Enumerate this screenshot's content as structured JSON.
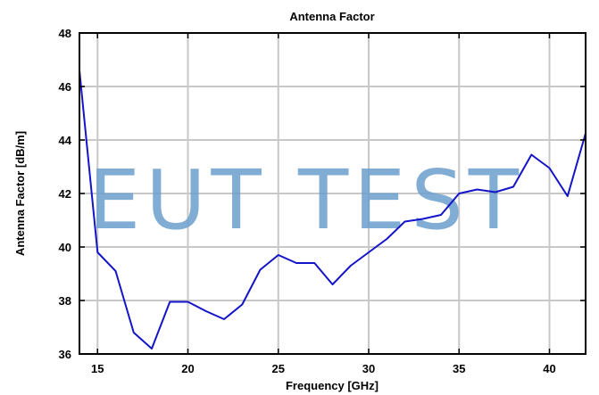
{
  "chart_data": {
    "type": "line",
    "title": "Antenna Factor",
    "xlabel": "Frequency [GHz]",
    "ylabel": "Antenna Factor [dB/m]",
    "xlim": [
      14,
      42
    ],
    "ylim": [
      36,
      48
    ],
    "xticks": [
      15,
      20,
      25,
      30,
      35,
      40
    ],
    "yticks": [
      36,
      38,
      40,
      42,
      44,
      46,
      48
    ],
    "grid": true,
    "series": [
      {
        "color": "#1414c8",
        "x": [
          14,
          15,
          16,
          17,
          18,
          19,
          20,
          21,
          22,
          23,
          24,
          25,
          26,
          27,
          28,
          29,
          30,
          31,
          32,
          33,
          34,
          35,
          36,
          37,
          38,
          39,
          40,
          41,
          42
        ],
        "y": [
          46.6,
          39.8,
          39.1,
          36.8,
          36.2,
          37.95,
          37.95,
          37.6,
          37.3,
          37.85,
          39.15,
          39.7,
          39.4,
          39.4,
          38.6,
          39.3,
          39.8,
          40.3,
          40.95,
          41.05,
          41.2,
          42.0,
          42.15,
          42.05,
          42.25,
          43.45,
          42.95,
          41.9,
          44.25
        ]
      }
    ],
    "watermark": "EUT TEST"
  }
}
